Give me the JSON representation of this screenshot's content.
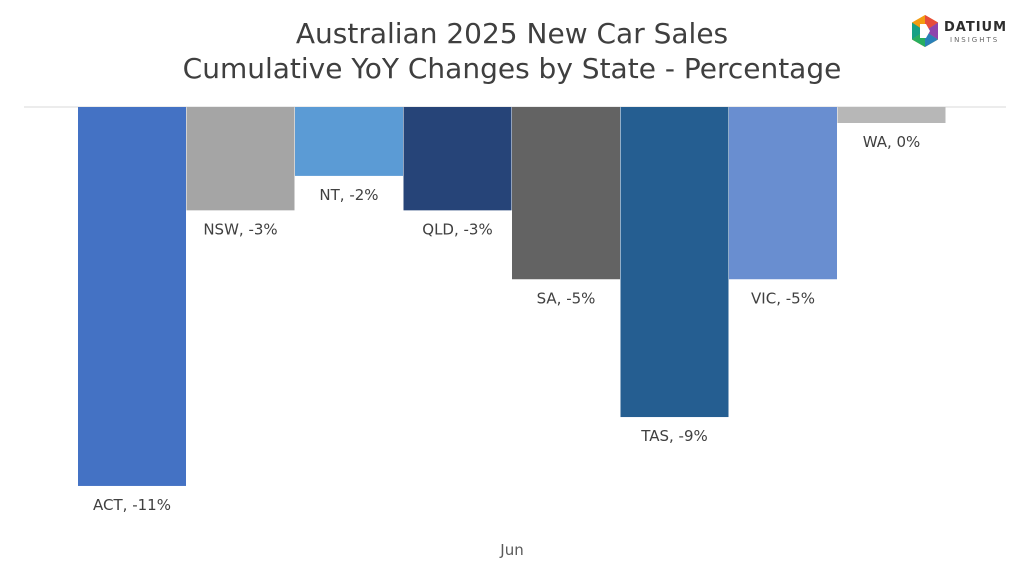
{
  "title_line1": "Australian 2025 New Car Sales",
  "title_line2": "Cumulative YoY Changes by State - Percentage",
  "logo": {
    "name": "DATIUM",
    "sub": "INSIGHTS"
  },
  "chart_data": {
    "type": "bar",
    "categories": [
      "ACT",
      "NSW",
      "NT",
      "QLD",
      "SA",
      "TAS",
      "VIC",
      "WA"
    ],
    "values": [
      -11,
      -3,
      -2,
      -3,
      -5,
      -9,
      -5,
      0
    ],
    "data_labels": [
      "ACT, -11%",
      "NSW, -3%",
      "NT, -2%",
      "QLD, -3%",
      "SA, -5%",
      "TAS, -9%",
      "VIC, -5%",
      "WA, 0%"
    ],
    "colors": [
      "#4472c4",
      "#a5a5a5",
      "#5b9bd5",
      "#264478",
      "#636363",
      "#255e91",
      "#698ed0",
      "#b7b7b7"
    ],
    "xlabel": "Jun",
    "ylabel": "",
    "grid": false,
    "legend": "none"
  }
}
